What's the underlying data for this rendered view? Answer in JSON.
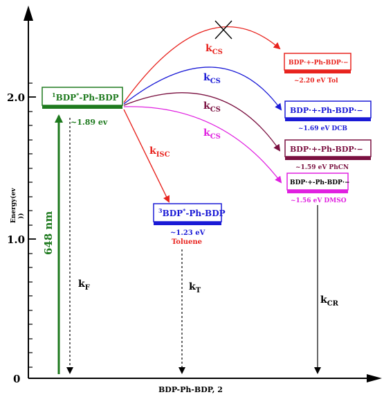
{
  "axes": {
    "y_label": "Energy(ev",
    "y_label_paren": "))",
    "x_label": "BDP-Ph-BDP, 2",
    "ticks": [
      {
        "label": "2.0",
        "value": 2.0
      },
      {
        "label": "1.0",
        "value": 1.0
      },
      {
        "label": "0",
        "value": 0
      }
    ]
  },
  "states": {
    "s1": {
      "sup": "1",
      "name": "BDP",
      "star": "*",
      "rest": "-Ph-BDP",
      "energy": "~1.89 ev",
      "color": "#1e7a1e"
    },
    "t1": {
      "sup": "3",
      "name": "BDP",
      "star": "*",
      "rest": "-Ph-BDP",
      "energy": "~1.23 eV",
      "solvent": "Toluene",
      "color": "#1a1ad6"
    },
    "cs_tol": {
      "label": "BDP·+-Ph-BDP·−",
      "energy": "~2.20 eV Tol",
      "color": "#e8231e"
    },
    "cs_dcb": {
      "label": "BDP·+-Ph-BDP·−",
      "energy": "~1.69 eV DCB",
      "color": "#1a1ad6"
    },
    "cs_phcn": {
      "label": "BDP·+-Ph-BDP·−",
      "energy": "~1.59 eV PhCN",
      "color": "#7a1040"
    },
    "cs_dmso": {
      "label": "BDP·+-Ph-BDP·−",
      "energy": "~1.56 eV DMSO",
      "color": "#e020e0"
    }
  },
  "processes": {
    "excitation": "648 nm",
    "kF": {
      "k": "k",
      "sub": "F"
    },
    "kISC": {
      "k": "k",
      "sub": "ISC"
    },
    "kT": {
      "k": "k",
      "sub": "T"
    },
    "kCR": {
      "k": "k",
      "sub": "CR"
    },
    "kCS": {
      "k": "k",
      "sub": "CS"
    }
  },
  "colors": {
    "green": "#1e7a1e",
    "red": "#e8231e",
    "blue": "#1a1ad6",
    "maroon": "#7a1040",
    "magenta": "#e020e0",
    "axis": "#000000"
  }
}
